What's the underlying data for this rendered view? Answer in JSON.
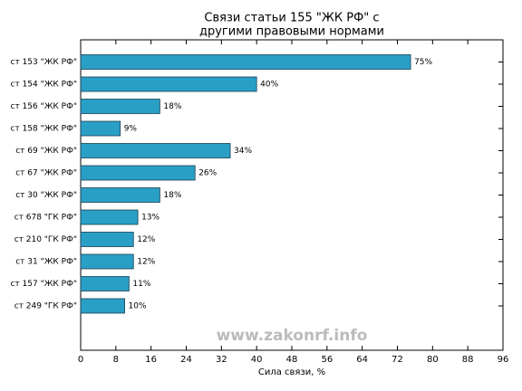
{
  "chart_data": {
    "type": "barh",
    "title": [
      "Связи статьи 155 \"ЖК РФ\" с",
      "другими правовыми нормами"
    ],
    "xlabel": "Сила связи, %",
    "watermark": "www.zakonrf.info",
    "categories": [
      "ст 153 \"ЖК РФ\"",
      "ст 154 \"ЖК РФ\"",
      "ст 156 \"ЖК РФ\"",
      "ст 158 \"ЖК РФ\"",
      "ст 69 \"ЖК РФ\"",
      "ст 67 \"ЖК РФ\"",
      "ст 30 \"ЖК РФ\"",
      "ст 678 \"ГК РФ\"",
      "ст 210 \"ГК РФ\"",
      "ст 31 \"ЖК РФ\"",
      "ст 157 \"ЖК РФ\"",
      "ст 249 \"ГК РФ\""
    ],
    "values": [
      75,
      40,
      18,
      9,
      34,
      26,
      18,
      13,
      12,
      12,
      11,
      10
    ],
    "value_labels": [
      "75%",
      "40%",
      "18%",
      "9%",
      "34%",
      "26%",
      "18%",
      "13%",
      "12%",
      "12%",
      "11%",
      "10%"
    ],
    "color": "#2a9fc6",
    "xlim": [
      0,
      96
    ],
    "xticks": [
      0,
      8,
      16,
      24,
      32,
      40,
      48,
      56,
      64,
      72,
      80,
      88,
      96
    ]
  }
}
